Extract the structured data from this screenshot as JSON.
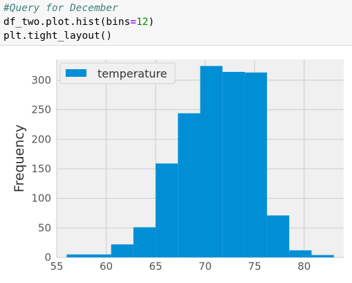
{
  "code_cell": {
    "comment": "#Query for December",
    "line2": {
      "prefix": "df_two.plot.hist(bins",
      "operator": "=",
      "number": "12",
      "suffix": ")"
    },
    "line3": "plt.tight_layout()"
  },
  "chart_data": {
    "type": "bar",
    "title": "",
    "xlabel": "",
    "ylabel": "Frequency",
    "xlim": [
      55,
      84
    ],
    "ylim": [
      0,
      335
    ],
    "xticks": [
      55,
      60,
      65,
      70,
      75,
      80
    ],
    "yticks": [
      0,
      50,
      100,
      150,
      200,
      250,
      300
    ],
    "grid": true,
    "legend_position": "top-left",
    "bin_edges": [
      56,
      58.25,
      60.5,
      62.75,
      65,
      67.25,
      69.5,
      71.75,
      74,
      76.25,
      78.5,
      80.75,
      83
    ],
    "series": [
      {
        "name": "temperature",
        "color": "#008fd5",
        "values": [
          5,
          5,
          22,
          51,
          159,
          244,
          324,
          314,
          313,
          71,
          12,
          4
        ]
      }
    ]
  },
  "colors": {
    "plot_background": "#f0f0f0",
    "grid": "#cbcbcb",
    "bar": "#008fd5",
    "tick_text": "#555555"
  }
}
